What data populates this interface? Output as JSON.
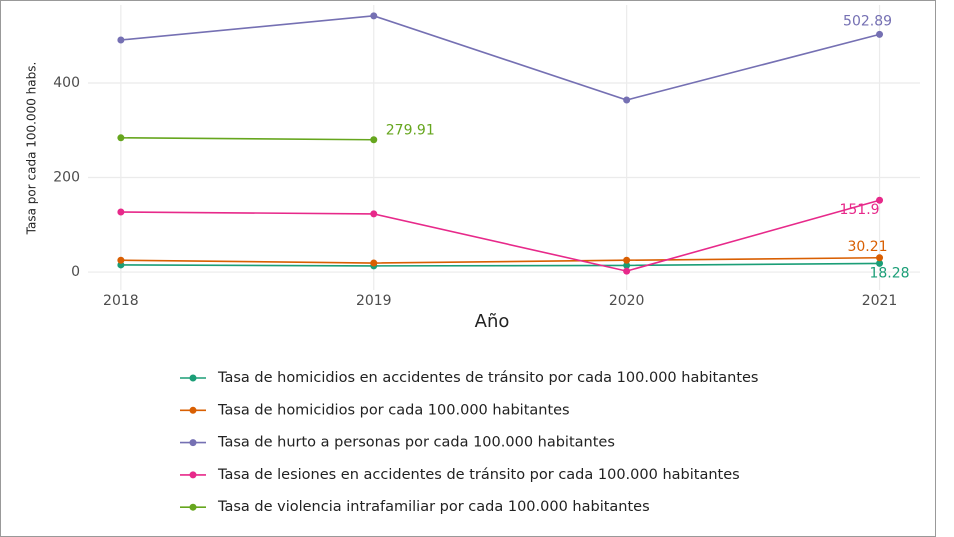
{
  "chart_data": {
    "type": "line",
    "x_label": "Año",
    "y_label": "Tasa por cada 100.000 habs.",
    "x": [
      2018,
      2019,
      2020,
      2021
    ],
    "xlim": [
      2017.87,
      2021.16
    ],
    "xticks": [
      2018,
      2019,
      2020,
      2021
    ],
    "ylim": [
      -38,
      565
    ],
    "yticks": [
      0,
      200,
      400
    ],
    "grid": true,
    "legend": "bottom",
    "series": [
      {
        "name": "Tasa de homicidios en accidentes de tránsito por cada 100.000 habitantes",
        "color": "#1b9e77",
        "values": [
          15,
          13,
          14,
          18.28
        ]
      },
      {
        "name": "Tasa de homicidios por cada 100.000 habitantes",
        "color": "#d95f02",
        "values": [
          25,
          19,
          25,
          30.21
        ]
      },
      {
        "name": "Tasa de hurto a personas por cada 100.000 habitantes",
        "color": "#7570b3",
        "values": [
          491,
          542,
          364,
          502.89
        ]
      },
      {
        "name": "Tasa de lesiones en accidentes de tránsito por cada 100.000 habitantes",
        "color": "#e7298a",
        "values": [
          127,
          123,
          2,
          151.9
        ]
      },
      {
        "name": "Tasa de violencia intrafamiliar por cada 100.000 habitantes",
        "color": "#66a61e",
        "values": [
          284,
          279.91,
          null,
          null
        ]
      }
    ]
  }
}
